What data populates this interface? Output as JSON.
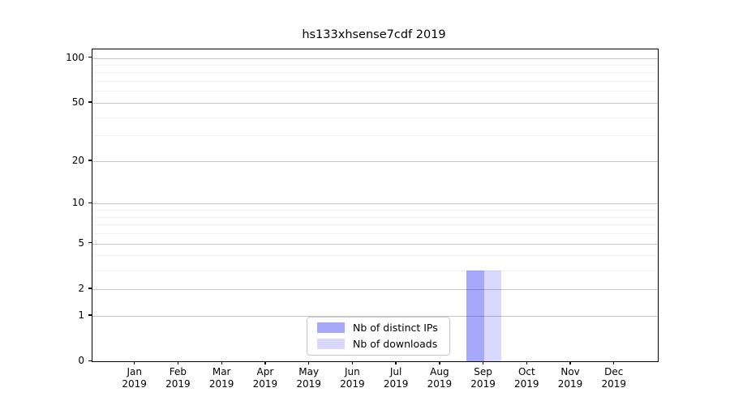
{
  "figure": {
    "background": "#ffffff",
    "spine_color": "#000000"
  },
  "chart_data": {
    "type": "bar",
    "title": "hs133xhsense7cdf 2019",
    "categories": [
      "Jan",
      "Feb",
      "Mar",
      "Apr",
      "May",
      "Jun",
      "Jul",
      "Aug",
      "Sep",
      "Oct",
      "Nov",
      "Dec"
    ],
    "category_year": "2019",
    "series": [
      {
        "name": "Nb of distinct IPs",
        "color": "rgba(0,0,240,0.34)",
        "values": [
          0,
          0,
          0,
          0,
          0,
          0,
          0,
          0,
          3,
          0,
          0,
          0
        ]
      },
      {
        "name": "Nb of downloads",
        "color": "rgba(0,0,240,0.15)",
        "values": [
          0,
          0,
          0,
          0,
          0,
          0,
          0,
          0,
          3,
          0,
          0,
          0
        ]
      }
    ],
    "xlabel": "",
    "ylabel": "",
    "y_scale": "log10(1+x)",
    "ylim": [
      0,
      114
    ],
    "y_major_ticks": [
      0,
      1,
      2,
      5,
      10,
      20,
      50,
      100
    ],
    "y_minor_gridlines": [
      3,
      4,
      6,
      7,
      8,
      9,
      30,
      40,
      60,
      70,
      80,
      90
    ],
    "grid": {
      "orientation": "horizontal",
      "major_color": "#c6c6c6",
      "minor_color": "#f0f0f0"
    },
    "legend": {
      "position": "lower center"
    }
  }
}
